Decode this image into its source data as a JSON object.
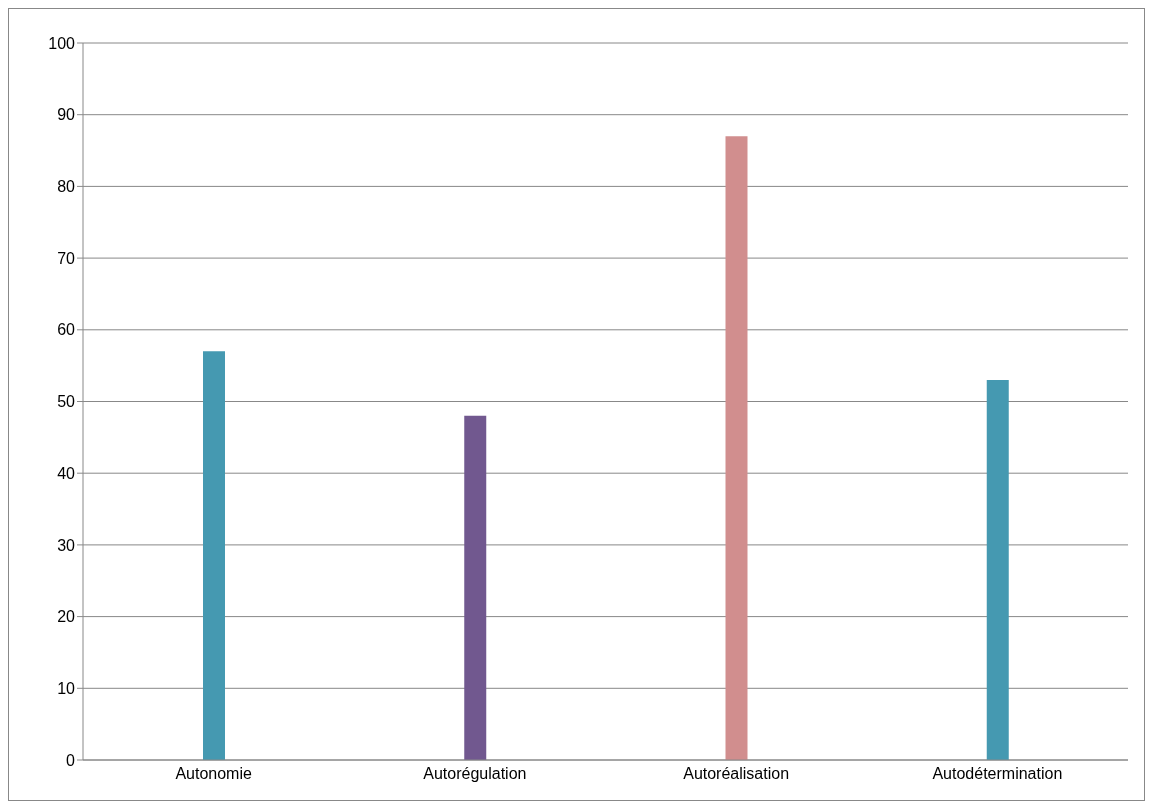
{
  "chart_data": {
    "type": "bar",
    "categories": [
      "Autonomie",
      "Autorégulation",
      "Autoréalisation",
      "Autodétermination"
    ],
    "values": [
      57,
      48,
      87,
      53
    ],
    "colors": [
      "#4599b1",
      "#71588f",
      "#d18e8e",
      "#4599b1"
    ],
    "ylim": [
      0,
      100
    ],
    "yticks": [
      0,
      10,
      20,
      30,
      40,
      50,
      60,
      70,
      80,
      90,
      100
    ],
    "grid": "y"
  }
}
